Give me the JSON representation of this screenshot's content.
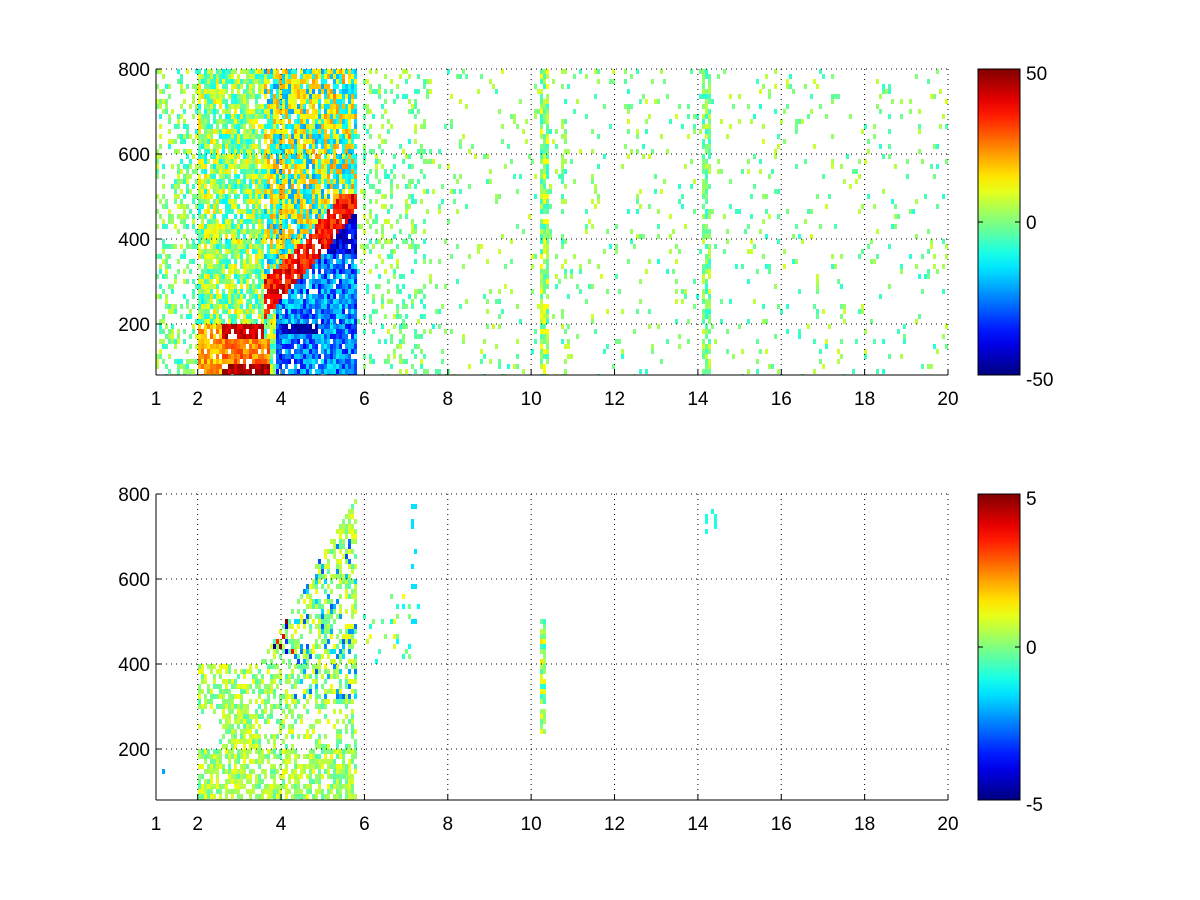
{
  "chart_data": [
    {
      "type": "heatmap",
      "title": "",
      "xlabel": "",
      "ylabel": "",
      "xlim": [
        1,
        20
      ],
      "ylim": [
        80,
        800
      ],
      "x_ticks": [
        1,
        2,
        4,
        6,
        8,
        10,
        12,
        14,
        16,
        18,
        20
      ],
      "y_ticks": [
        200,
        400,
        600,
        800
      ],
      "grid": true,
      "colormap": "jet",
      "colorbar": {
        "limits": [
          -50,
          50
        ],
        "ticks": [
          -50,
          0,
          50
        ]
      },
      "features": [
        {
          "x_range": [
            2.6,
            3.6
          ],
          "y_range": [
            80,
            110
          ],
          "value": 50
        },
        {
          "x_range": [
            2.6,
            3.6
          ],
          "y_range": [
            170,
            200
          ],
          "value": 45
        },
        {
          "x_range": [
            3.9,
            5.8
          ],
          "y_range": [
            80,
            370
          ],
          "value": -25
        },
        {
          "x_range": [
            4.0,
            4.9
          ],
          "y_range": [
            180,
            200
          ],
          "value": -45
        },
        {
          "curve_ridge_positive": [
            [
              3.8,
              280
            ],
            [
              4.5,
              320
            ],
            [
              5.2,
              380
            ],
            [
              5.8,
              450
            ]
          ],
          "value": 35
        },
        {
          "curve_ridge_negative": [
            [
              4.5,
              280
            ],
            [
              5.2,
              340
            ],
            [
              5.8,
              400
            ]
          ],
          "value": -45
        },
        {
          "column_x": 10.3,
          "y_range": [
            80,
            800
          ],
          "value": -10
        },
        {
          "column_x": 14.2,
          "y_range": [
            80,
            800
          ],
          "value": -10
        }
      ]
    },
    {
      "type": "heatmap",
      "title": "",
      "xlabel": "",
      "ylabel": "",
      "xlim": [
        1,
        20
      ],
      "ylim": [
        80,
        800
      ],
      "x_ticks": [
        1,
        2,
        4,
        6,
        8,
        10,
        12,
        14,
        16,
        18,
        20
      ],
      "y_ticks": [
        200,
        400,
        600,
        800
      ],
      "grid": true,
      "colormap": "jet",
      "colorbar": {
        "limits": [
          -5,
          5
        ],
        "ticks": [
          -5,
          0,
          5
        ]
      },
      "features": [
        {
          "x_range": [
            2.0,
            5.8
          ],
          "y_range": [
            80,
            560
          ],
          "value": 0.3
        },
        {
          "x_range": [
            3.3,
            4.2
          ],
          "y_range": [
            430,
            520
          ],
          "value": -3.5
        },
        {
          "column_x": 10.3,
          "y_range": [
            230,
            510
          ],
          "value": 1.0
        },
        {
          "column_x": 7.2,
          "y_range": [
            450,
            780
          ],
          "value": -1.5
        }
      ]
    }
  ]
}
